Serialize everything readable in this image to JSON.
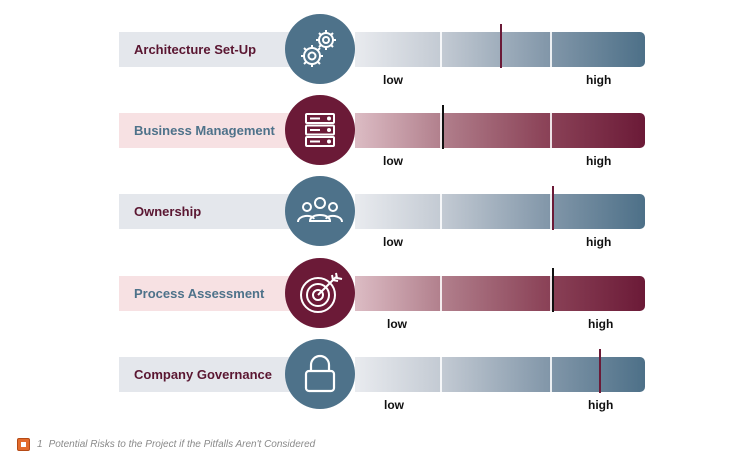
{
  "rows": [
    {
      "label": "Architecture Set-Up",
      "icon": "gears-icon",
      "theme": "blue",
      "value": 0.5,
      "low": "low",
      "high": "high"
    },
    {
      "label": "Business Management",
      "icon": "server-stack-icon",
      "theme": "red",
      "value": 0.3,
      "low": "low",
      "high": "high"
    },
    {
      "label": "Ownership",
      "icon": "people-group-icon",
      "theme": "blue",
      "value": 0.68,
      "low": "low",
      "high": "high"
    },
    {
      "label": "Process Assessment",
      "icon": "target-icon",
      "theme": "red",
      "value": 0.68,
      "low": "low",
      "high": "high"
    },
    {
      "label": "Company Governance",
      "icon": "lock-icon",
      "theme": "blue",
      "value": 0.84,
      "low": "low",
      "high": "high"
    }
  ],
  "colors": {
    "blue_label_bg": "#e4e7ec",
    "blue_text": "#5a1631",
    "blue_circle": "#4e728a",
    "blue_marker": "#6b1a37",
    "red_label_bg": "#f7e1e3",
    "red_text": "#4e728a",
    "red_circle": "#6b1a37",
    "red_marker": "#111111"
  },
  "caption": {
    "number": "1",
    "text": "Potential Risks to the Project if the Pitfalls Aren't Considered"
  }
}
